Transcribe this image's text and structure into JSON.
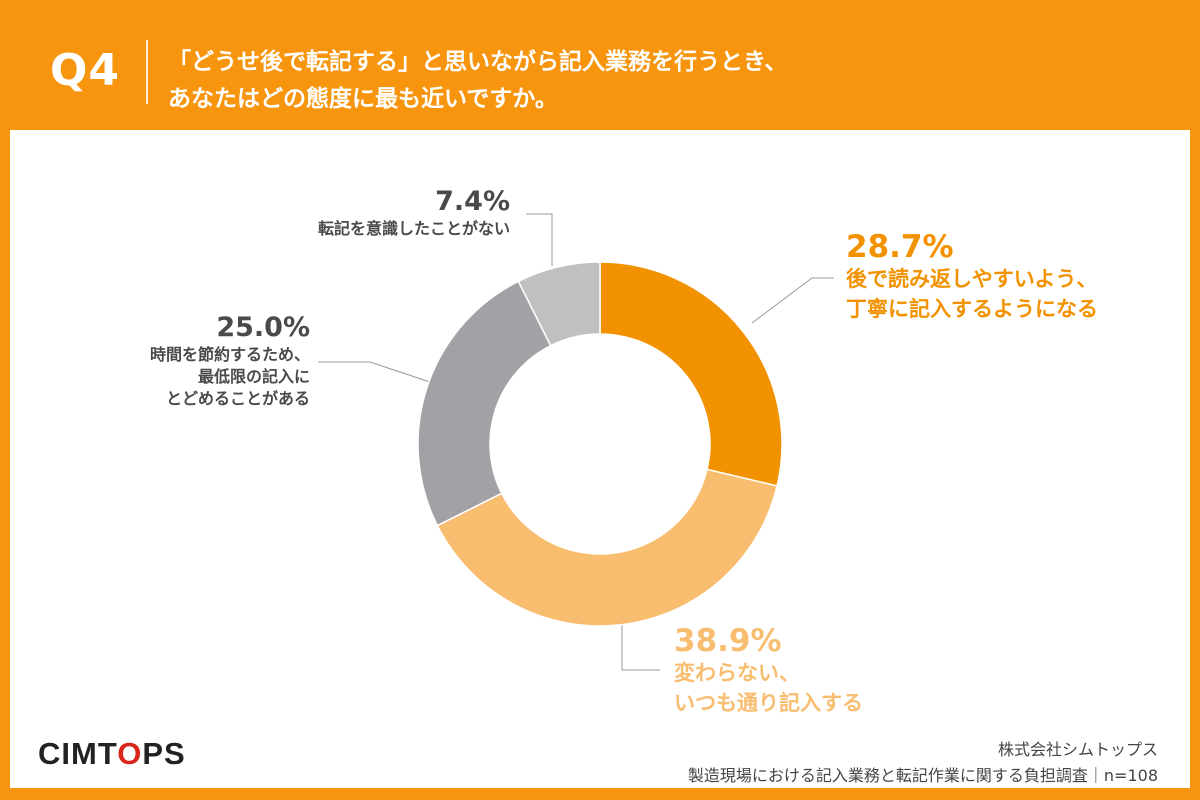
{
  "header": {
    "question_number": "Q4",
    "question_line1": "「どうせ後で転記する」と思いながら記入業務を行うとき、",
    "question_line2": "あなたはどの態度に最も近いですか。"
  },
  "chart_data": {
    "type": "pie",
    "donut": true,
    "slices": [
      {
        "label_lines": [
          "後で読み返しやすいよう、",
          "丁寧に記入するようになる"
        ],
        "value": 28.7,
        "display": "28.7%",
        "color": "#f39200"
      },
      {
        "label_lines": [
          "変わらない、",
          "いつも通り記入する"
        ],
        "value": 38.9,
        "display": "38.9%",
        "color": "#f8bd6f"
      },
      {
        "label_lines": [
          "時間を節約するため、",
          "最低限の記入に",
          "とどめることがある"
        ],
        "value": 25.0,
        "display": "25.0%",
        "color": "#a4a1a6"
      },
      {
        "label_lines": [
          "転記を意識したことがない"
        ],
        "value": 7.4,
        "display": "7.4%",
        "color": "#c2bfc3"
      }
    ]
  },
  "footer": {
    "brand_pre": "CIMT",
    "brand_o": "O",
    "brand_post": "PS",
    "company": "株式会社シムトップス",
    "source": "製造現場における記入業務と転記作業に関する負担調査｜n=108"
  }
}
